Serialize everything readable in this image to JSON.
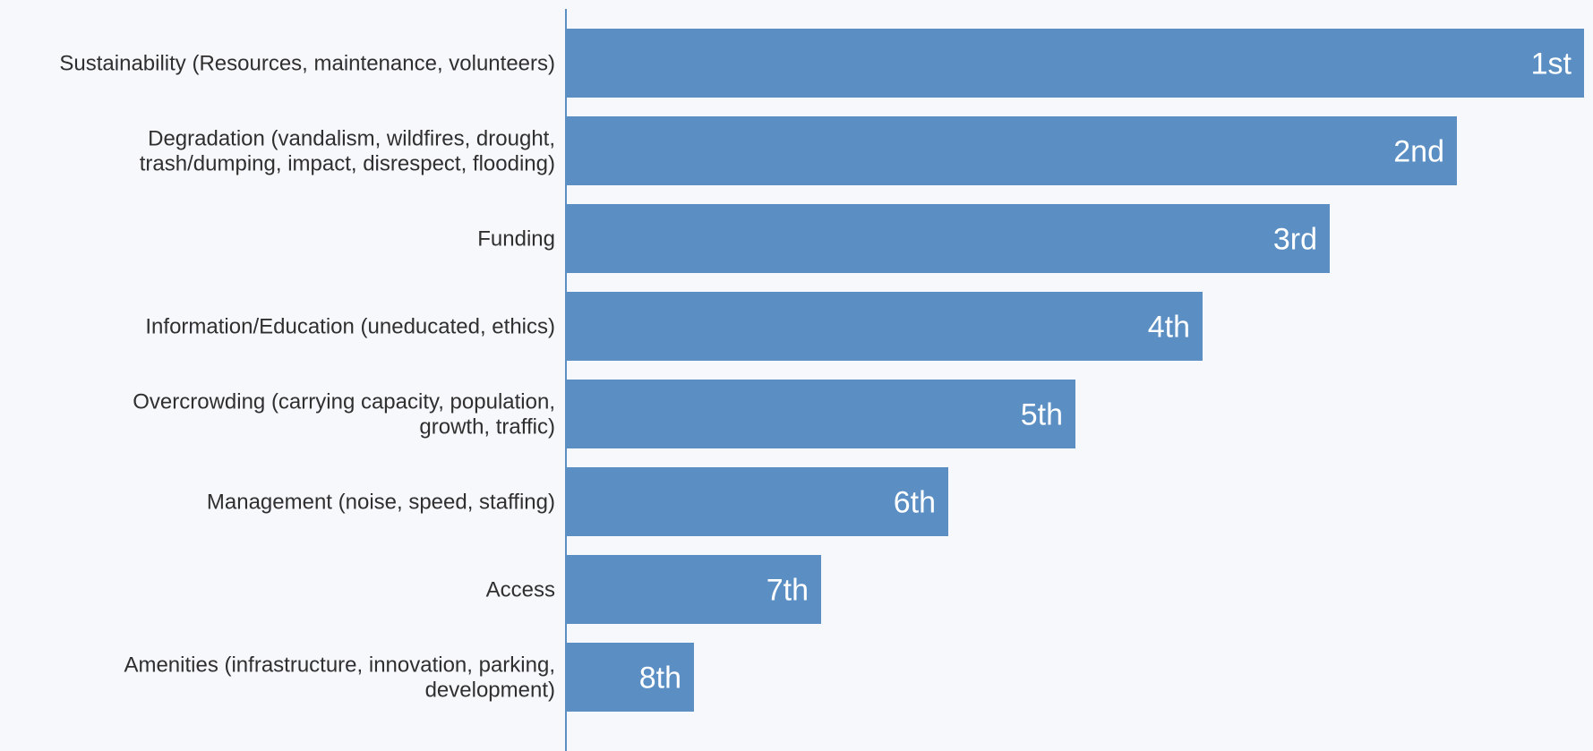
{
  "chart_data": {
    "type": "bar",
    "orientation": "horizontal",
    "title": "",
    "xlabel": "",
    "ylabel": "",
    "categories": [
      [
        "Sustainability (Resources, maintenance, volunteers)"
      ],
      [
        "Degradation (vandalism, wildfires, drought,",
        "trash/dumping, impact, disrespect, flooding)"
      ],
      [
        "Funding"
      ],
      [
        "Information/Education (uneducated, ethics)"
      ],
      [
        "Overcrowding (carrying capacity, population,",
        "growth, traffic)"
      ],
      [
        "Management (noise, speed, staffing)"
      ],
      [
        "Access"
      ],
      [
        "Amenities (infrastructure, innovation, parking,",
        "development)"
      ]
    ],
    "values": [
      8,
      7,
      6,
      5,
      4,
      3,
      2,
      1
    ],
    "data_labels": [
      "1st",
      "2nd",
      "3rd",
      "4th",
      "5th",
      "6th",
      "7th",
      "8th"
    ],
    "xlim": [
      0,
      8
    ],
    "grid": false,
    "legend": "none",
    "bar_color": "#5b8fc4",
    "label_color": "#ffffff",
    "axis_color": "#5b8fc4"
  }
}
